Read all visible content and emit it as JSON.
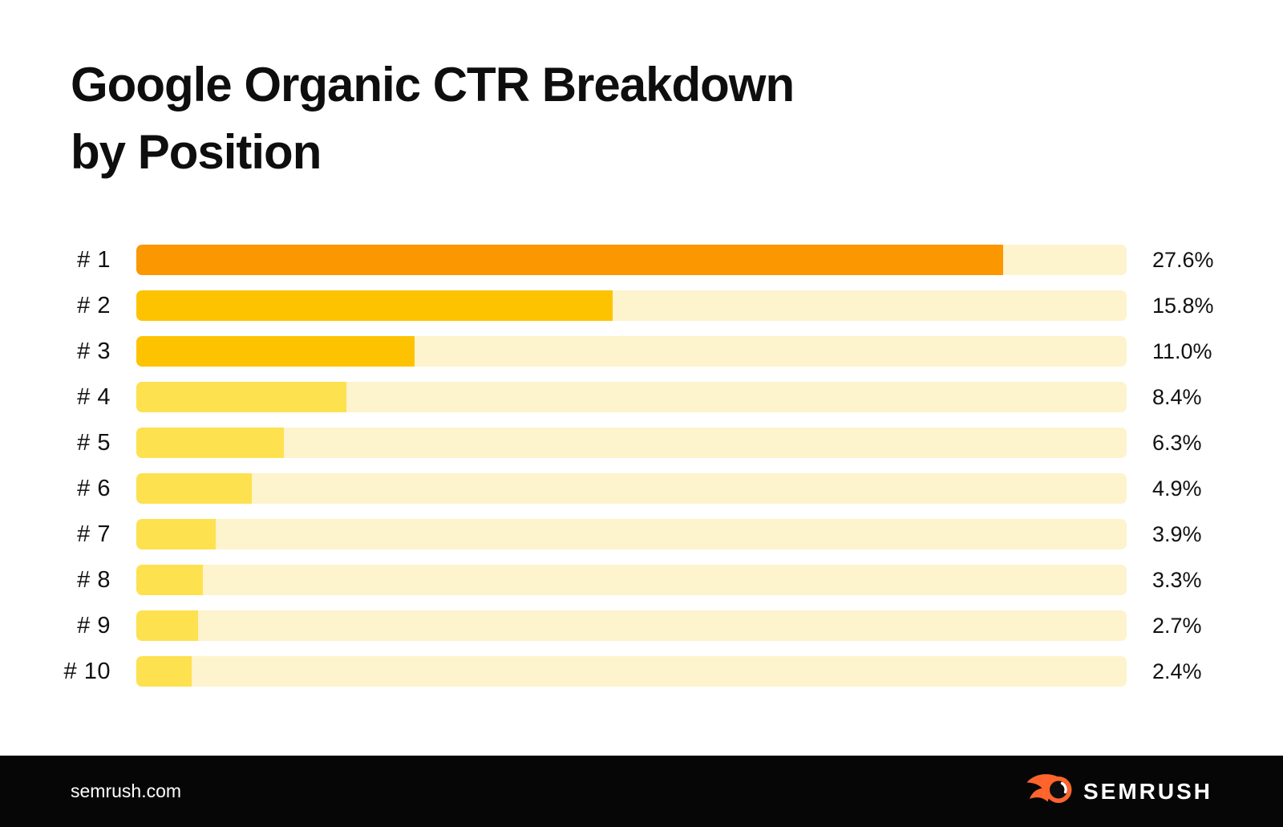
{
  "page": {
    "background": "#ffffff"
  },
  "title": {
    "line1": "Google Organic CTR Breakdown",
    "line2": "by Position"
  },
  "chart_data": {
    "type": "bar",
    "orientation": "horizontal",
    "title": "Google Organic CTR Breakdown by Position",
    "categories": [
      "# 1",
      "# 2",
      "# 3",
      "# 4",
      "# 5",
      "# 6",
      "# 7",
      "# 8",
      "# 9",
      "# 10"
    ],
    "values": [
      27.6,
      15.8,
      11.0,
      8.4,
      6.3,
      4.9,
      3.9,
      3.3,
      2.7,
      2.4
    ],
    "value_labels": [
      "27.6%",
      "15.8%",
      "11.0%",
      "8.4%",
      "6.3%",
      "4.9%",
      "3.9%",
      "3.3%",
      "2.7%",
      "2.4%"
    ],
    "unit": "%",
    "xlabel": "",
    "ylabel": "",
    "grid": false,
    "legend": false,
    "track_color": "#FDF3CD",
    "bars": [
      {
        "label": "# 1",
        "value": 27.6,
        "display": "27.6%",
        "fill_pct": 87.5,
        "color": "#FB9701"
      },
      {
        "label": "# 2",
        "value": 15.8,
        "display": "15.8%",
        "fill_pct": 48.1,
        "color": "#FDC300"
      },
      {
        "label": "# 3",
        "value": 11.0,
        "display": "11.0%",
        "fill_pct": 28.1,
        "color": "#FDC300"
      },
      {
        "label": "# 4",
        "value": 8.4,
        "display": "8.4%",
        "fill_pct": 21.2,
        "color": "#FDE14F"
      },
      {
        "label": "# 5",
        "value": 6.3,
        "display": "6.3%",
        "fill_pct": 14.9,
        "color": "#FDE14F"
      },
      {
        "label": "# 6",
        "value": 4.9,
        "display": "4.9%",
        "fill_pct": 11.7,
        "color": "#FDE14F"
      },
      {
        "label": "# 7",
        "value": 3.9,
        "display": "3.9%",
        "fill_pct": 8.0,
        "color": "#FDE14F"
      },
      {
        "label": "# 8",
        "value": 3.3,
        "display": "3.3%",
        "fill_pct": 6.7,
        "color": "#FDE14F"
      },
      {
        "label": "# 9",
        "value": 2.7,
        "display": "2.7%",
        "fill_pct": 6.2,
        "color": "#FDE14F"
      },
      {
        "label": "# 10",
        "value": 2.4,
        "display": "2.4%",
        "fill_pct": 5.6,
        "color": "#FDE14F"
      }
    ]
  },
  "footer": {
    "site": "semrush.com",
    "brand": "SEMRUSH",
    "background": "#060606",
    "logo_color": "#FF642D",
    "logo_inner_color": "#0d0d0d"
  }
}
